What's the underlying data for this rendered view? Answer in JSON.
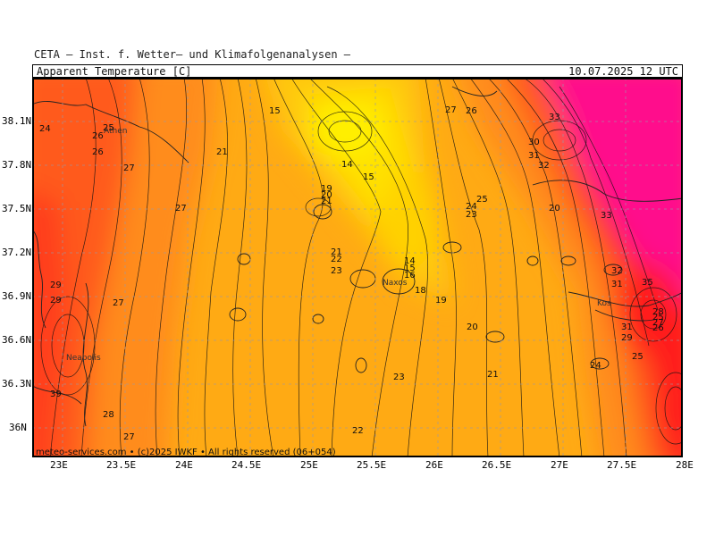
{
  "header": {
    "source": "CETA — Inst. f. Wetter— und Klimafolgenanalysen —",
    "parameter": "Apparent_Temperature [C]",
    "datetime": "10.07.2025 12 UTC"
  },
  "footer": {
    "credit": "meteo-services.com • (c)2025 IWKF • All rights reserved (06+054)"
  },
  "axes": {
    "lon_ticks": [
      "23E",
      "23.5E",
      "24E",
      "24.5E",
      "25E",
      "25.5E",
      "26E",
      "26.5E",
      "27E",
      "27.5E",
      "28E"
    ],
    "lat_ticks": [
      "38.1N",
      "37.8N",
      "37.5N",
      "37.2N",
      "36.9N",
      "36.6N",
      "36.3N",
      "36N"
    ]
  },
  "places": [
    "Athen",
    "Naxos",
    "Neapolis",
    "Kos"
  ],
  "contour_labels": [
    "24",
    "25",
    "26",
    "26",
    "27",
    "21",
    "15",
    "14",
    "15",
    "19",
    "20",
    "21",
    "27",
    "27",
    "26",
    "25",
    "24",
    "23",
    "33",
    "30",
    "31",
    "32",
    "20",
    "33",
    "21",
    "22",
    "23",
    "14",
    "15",
    "16",
    "18",
    "19",
    "20",
    "32",
    "31",
    "35",
    "28",
    "25",
    "27",
    "26",
    "31",
    "29",
    "24",
    "25",
    "29",
    "29",
    "27",
    "39",
    "28",
    "27",
    "23",
    "21",
    "22"
  ],
  "colors": {
    "hot_magenta": "#ff0a8c",
    "red": "#ff1e1e",
    "red_orange": "#ff5a1e",
    "orange": "#ff8c1e",
    "amber": "#ffaa14",
    "yellow_orange": "#ffc80a",
    "yellow": "#ffe100",
    "bright_yellow": "#fff000"
  }
}
